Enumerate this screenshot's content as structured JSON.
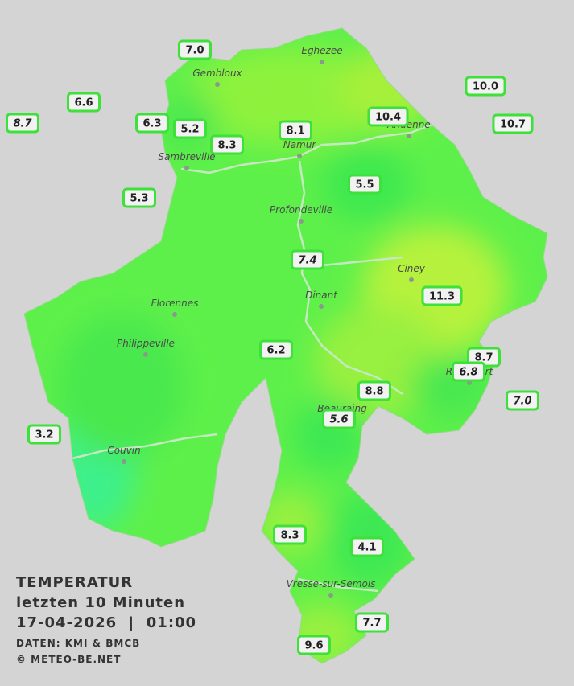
{
  "map": {
    "cities": [
      "Eghezee",
      "Gembloux",
      "Andenne",
      "Namur",
      "Sambreville",
      "Profondeville",
      "Ciney",
      "Dinant",
      "Florennes",
      "Philippeville",
      "Rochefort",
      "Beauraing",
      "Couvin",
      "Vresse-sur-Semois"
    ],
    "stations": [
      "7.0",
      "6.6",
      "8.7",
      "6.3",
      "5.2",
      "8.3",
      "8.1",
      "10.4",
      "10.0",
      "10.7",
      "5.3",
      "5.5",
      "7.4",
      "11.3",
      "6.2",
      "8.7",
      "6.8",
      "7.0",
      "8.8",
      "5.6",
      "3.2",
      "8.3",
      "4.1",
      "7.7",
      "9.6"
    ]
  },
  "caption": {
    "title": "TEMPERATUR",
    "period": "letzten 10 Minuten",
    "datetime": "17-04-2026  |  01:00",
    "source": "DATEN: KMI & BMCB",
    "credit": "© METEO-BE.NET"
  }
}
